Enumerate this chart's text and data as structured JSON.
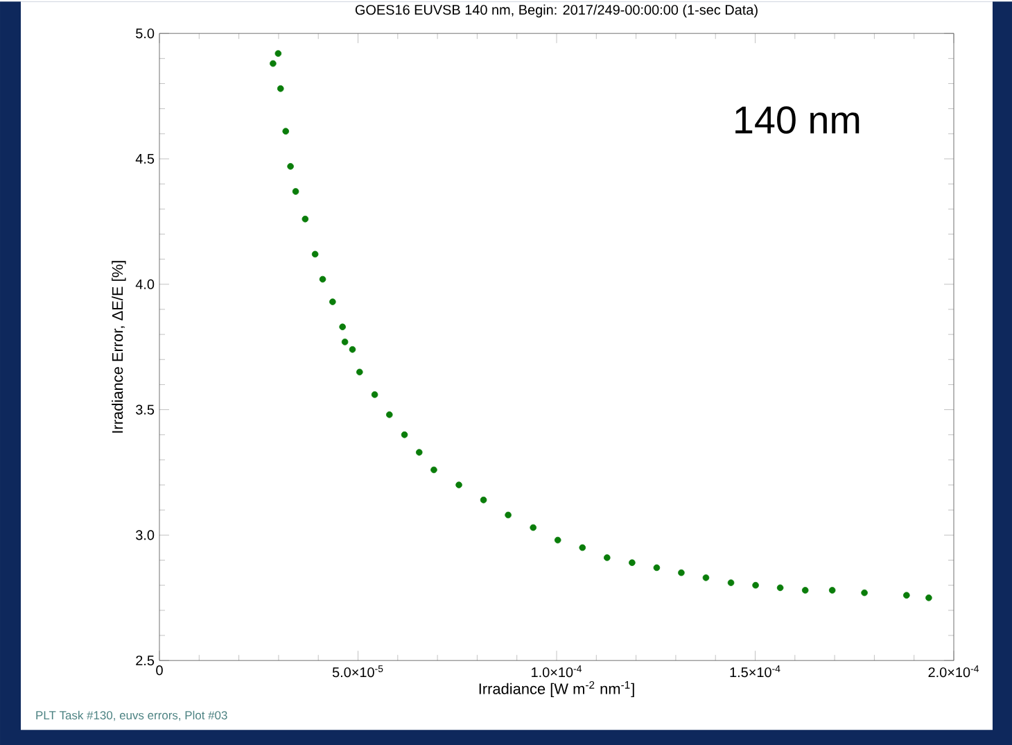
{
  "chart_data": {
    "type": "scatter",
    "title": "GOES16 EUVSB 140 nm, Begin: 2017/249-00:00:00 (1-sec Data)",
    "xlabel": "Irradiance [W m$^{-2}$ nm$^{-1}$]",
    "ylabel": "Irradiance Error, ΔE/E [%]",
    "annotations": [
      "140 nm",
      "PLT Task #130, euvs errors, Plot #03"
    ],
    "xlim": [
      0,
      0.0002
    ],
    "ylim": [
      2.5,
      5.0
    ],
    "xticks": [
      {
        "value": 0,
        "label": "0"
      },
      {
        "value": 5e-05,
        "label": "5.0×10$^{-5}$"
      },
      {
        "value": 0.0001,
        "label": "1.0×10$^{-4}$"
      },
      {
        "value": 0.00015,
        "label": "1.5×10$^{-4}$"
      },
      {
        "value": 0.0002,
        "label": "2.0×10$^{-4}$"
      }
    ],
    "yticks": [
      {
        "value": 2.5,
        "label": "2.5"
      },
      {
        "value": 3.0,
        "label": "3.0"
      },
      {
        "value": 3.5,
        "label": "3.5"
      },
      {
        "value": 4.0,
        "label": "4.0"
      },
      {
        "value": 4.5,
        "label": "4.5"
      },
      {
        "value": 5.0,
        "label": "5.0"
      }
    ],
    "series": [
      {
        "color": "#0a7d0a",
        "x": [
          2.99e-05,
          2.86e-05,
          3.05e-05,
          3.18e-05,
          3.3e-05,
          3.43e-05,
          3.67e-05,
          3.92e-05,
          4.11e-05,
          4.36e-05,
          4.61e-05,
          4.86e-05,
          4.67e-05,
          5.04e-05,
          5.42e-05,
          5.79e-05,
          6.17e-05,
          6.54e-05,
          6.91e-05,
          7.54e-05,
          8.16e-05,
          8.78e-05,
          9.41e-05,
          0.0001003,
          0.0001065,
          0.0001127,
          0.000119,
          0.0001252,
          0.0001314,
          0.0001376,
          0.0001439,
          0.0001501,
          0.0001563,
          0.0001626,
          0.0001694,
          0.0001775,
          0.0001881,
          0.0001937
        ],
        "values": [
          4.92,
          4.88,
          4.78,
          4.61,
          4.47,
          4.37,
          4.26,
          4.12,
          4.02,
          3.93,
          3.83,
          3.74,
          3.77,
          3.65,
          3.56,
          3.48,
          3.4,
          3.33,
          3.26,
          3.2,
          3.14,
          3.08,
          3.03,
          2.98,
          2.95,
          2.91,
          2.89,
          2.87,
          2.85,
          2.83,
          2.81,
          2.8,
          2.79,
          2.78,
          2.78,
          2.77,
          2.76,
          2.75
        ]
      }
    ]
  }
}
